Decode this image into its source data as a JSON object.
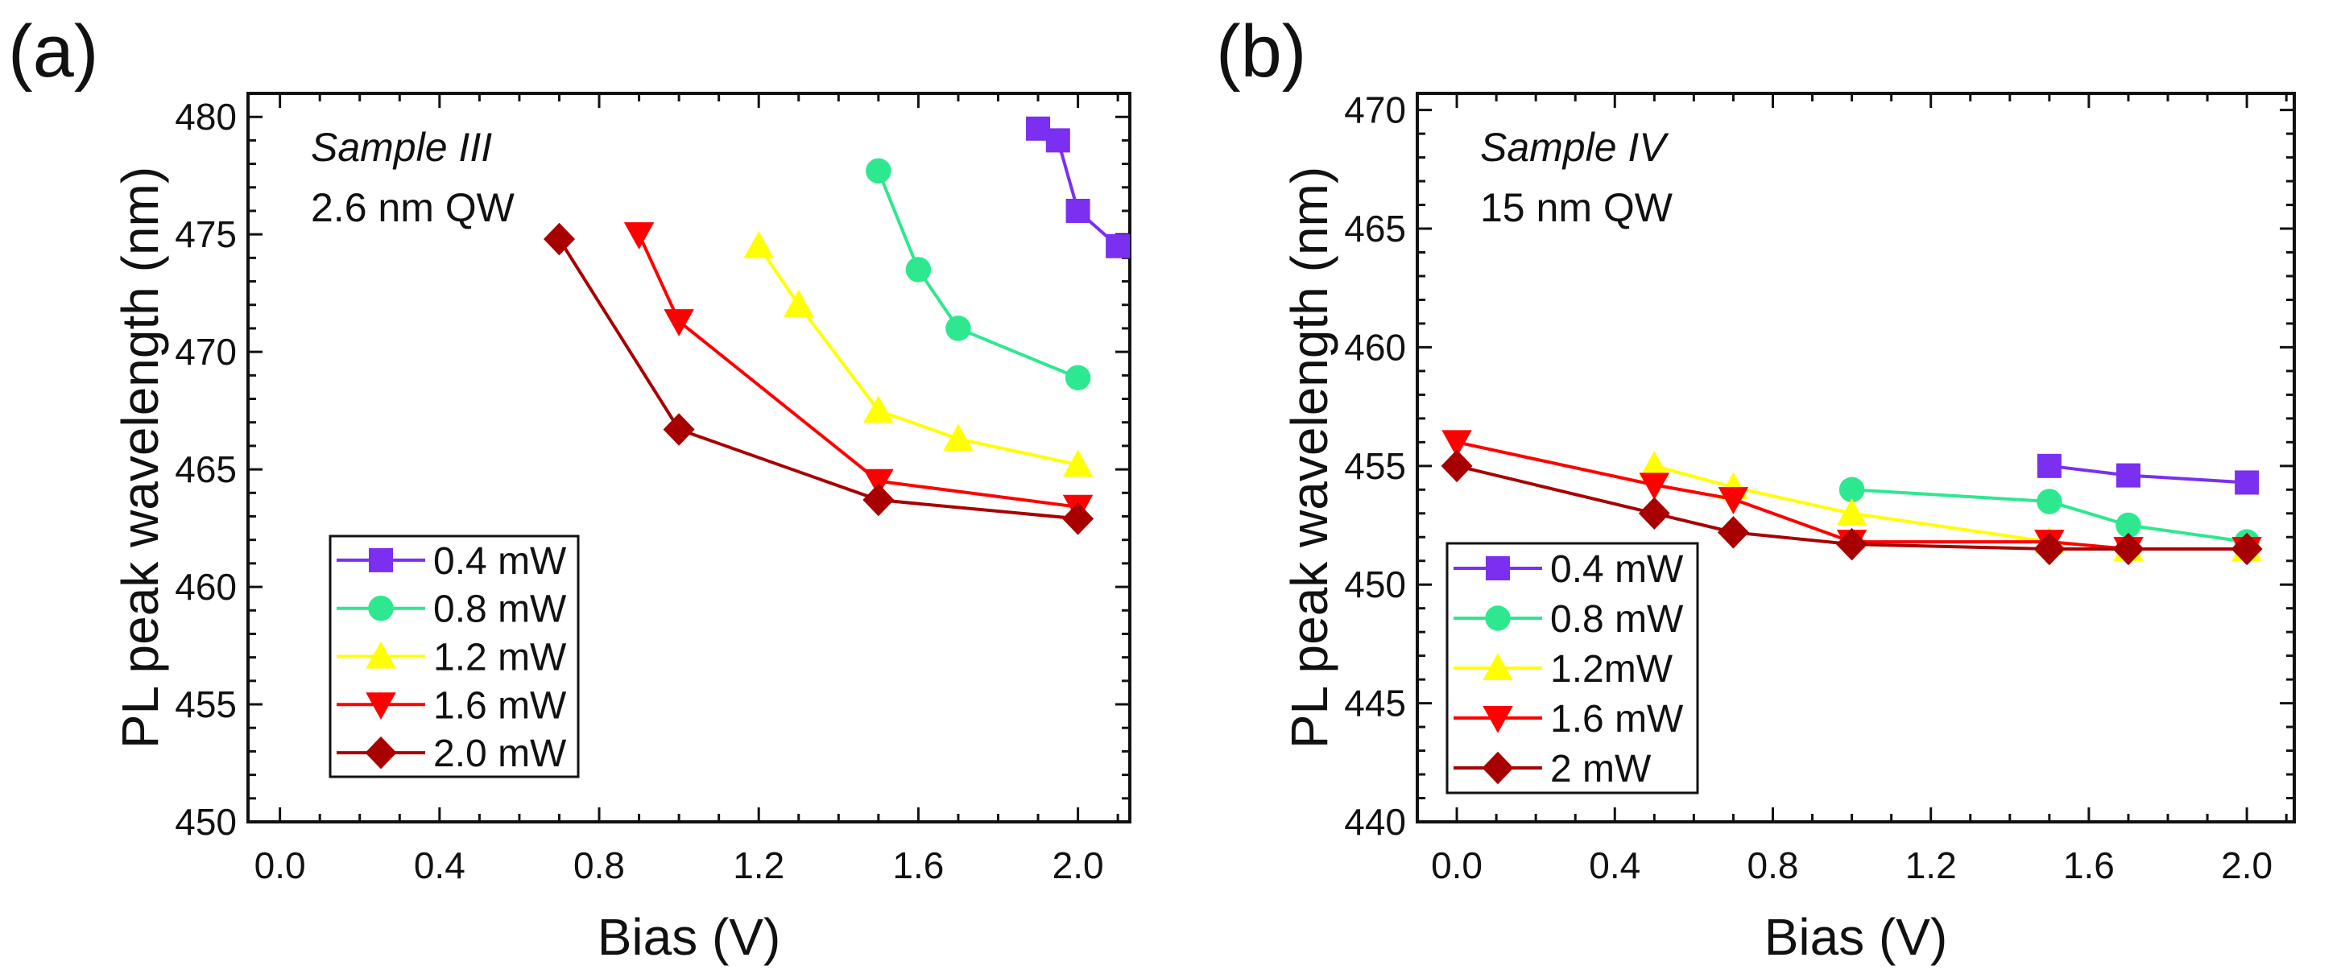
{
  "chart_data": [
    {
      "panel_label": "(a)",
      "type": "line",
      "xlabel": "Bias (V)",
      "ylabel": "PL peak wavelength (nm)",
      "xlim": [
        -0.08,
        2.13
      ],
      "ylim": [
        450,
        481
      ],
      "xticks": [
        "0.0",
        "0.4",
        "0.8",
        "1.2",
        "1.6",
        "2.0"
      ],
      "yticks": [
        "450",
        "455",
        "460",
        "465",
        "470",
        "475",
        "480"
      ],
      "grid": false,
      "legend_position": "bottom-left",
      "annotations": [
        {
          "text": "Sample III",
          "style": "italic"
        },
        {
          "text": "2.6 nm QW",
          "style": "normal"
        }
      ],
      "series": [
        {
          "name": "0.4 mW",
          "marker": "square",
          "color": "#7B2FF0",
          "x": [
            1.9,
            1.95,
            2.0,
            2.1
          ],
          "y": [
            479.5,
            479.0,
            476.0,
            474.5
          ]
        },
        {
          "name": "0.8 mW",
          "marker": "circle",
          "color": "#2EE88F",
          "x": [
            1.5,
            1.6,
            1.7,
            2.0
          ],
          "y": [
            477.7,
            473.5,
            471.0,
            468.9
          ]
        },
        {
          "name": "1.2 mW",
          "marker": "triangle-up",
          "color": "#FFFF00",
          "x": [
            1.2,
            1.3,
            1.5,
            1.7,
            2.0
          ],
          "y": [
            474.5,
            472.0,
            467.5,
            466.3,
            465.2
          ]
        },
        {
          "name": "1.6 mW",
          "marker": "triangle-down",
          "color": "#FF0000",
          "x": [
            0.9,
            1.0,
            1.5,
            2.0
          ],
          "y": [
            475.0,
            471.3,
            464.5,
            463.4
          ]
        },
        {
          "name": "2.0 mW",
          "marker": "diamond",
          "color": "#A80000",
          "x": [
            0.7,
            1.0,
            1.5,
            2.0
          ],
          "y": [
            474.8,
            466.7,
            463.7,
            462.9
          ]
        }
      ]
    },
    {
      "panel_label": "(b)",
      "type": "line",
      "xlabel": "Bias (V)",
      "ylabel": "PL peak wavelength (nm)",
      "xlim": [
        -0.1,
        2.12
      ],
      "ylim": [
        440,
        470.7
      ],
      "xticks": [
        "0.0",
        "0.4",
        "0.8",
        "1.2",
        "1.6",
        "2.0"
      ],
      "yticks": [
        "440",
        "445",
        "450",
        "455",
        "460",
        "465",
        "470"
      ],
      "grid": false,
      "legend_position": "bottom-left",
      "annotations": [
        {
          "text": "Sample IV",
          "style": "italic"
        },
        {
          "text": "15 nm QW",
          "style": "normal"
        }
      ],
      "series": [
        {
          "name": "0.4 mW",
          "marker": "square",
          "color": "#7B2FF0",
          "x": [
            1.5,
            1.7,
            2.0
          ],
          "y": [
            455.0,
            454.6,
            454.3
          ]
        },
        {
          "name": "0.8 mW",
          "marker": "circle",
          "color": "#2EE88F",
          "x": [
            1.0,
            1.5,
            1.7,
            2.0
          ],
          "y": [
            454.0,
            453.5,
            452.5,
            451.8
          ]
        },
        {
          "name": "1.2mW",
          "marker": "triangle-up",
          "color": "#FFFF00",
          "x": [
            0.5,
            0.7,
            1.0,
            1.5,
            1.7,
            2.0
          ],
          "y": [
            455.0,
            454.1,
            453.0,
            451.8,
            451.5,
            451.5
          ]
        },
        {
          "name": "1.6 mW",
          "marker": "triangle-down",
          "color": "#FF0000",
          "x": [
            0.0,
            0.5,
            0.7,
            1.0,
            1.5,
            1.7,
            2.0
          ],
          "y": [
            456.0,
            454.2,
            453.6,
            451.8,
            451.8,
            451.5,
            451.5
          ]
        },
        {
          "name": "2 mW",
          "marker": "diamond",
          "color": "#A80000",
          "x": [
            0.0,
            0.5,
            0.7,
            1.0,
            1.5,
            1.7,
            2.0
          ],
          "y": [
            455.0,
            453.0,
            452.2,
            451.7,
            451.5,
            451.5,
            451.5
          ]
        }
      ]
    }
  ]
}
